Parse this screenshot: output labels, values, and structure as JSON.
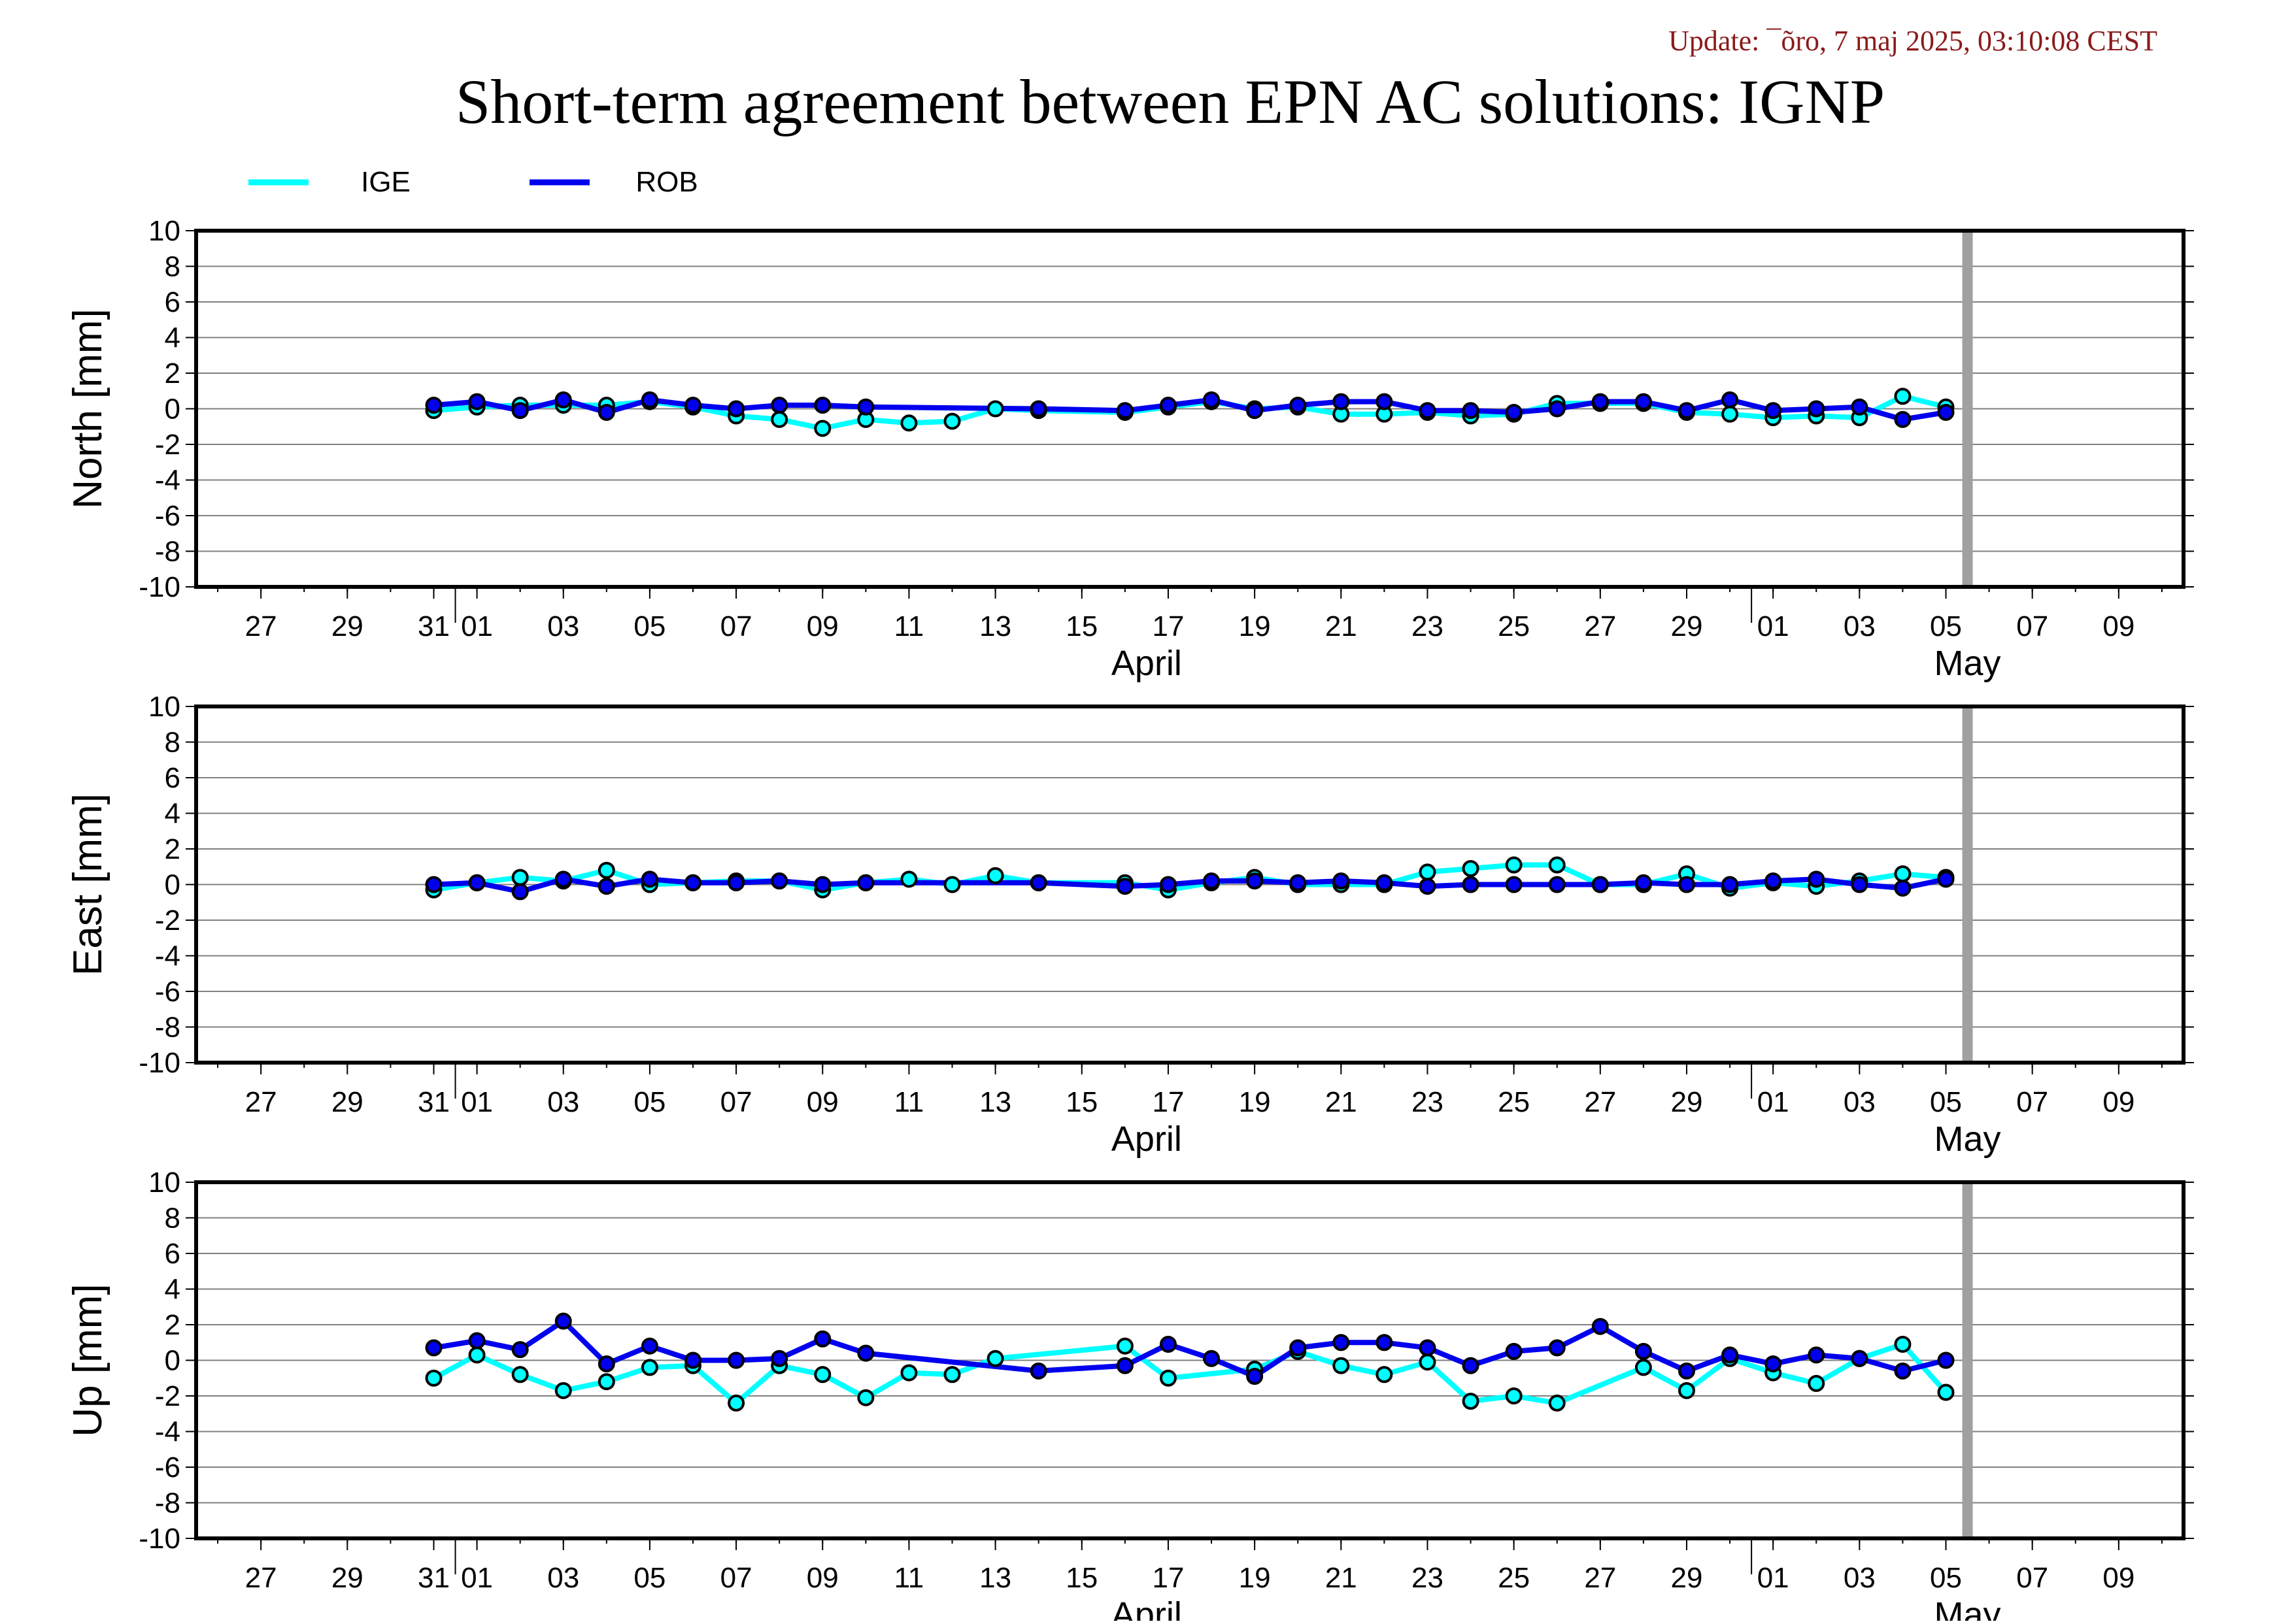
{
  "update_text": "Update: ¯õro, 7 maj 2025, 03:10:08 CEST",
  "title": "Short-term agreement between EPN AC solutions: IGNP",
  "colors": {
    "IGE": "#00ffff",
    "ROB": "#0000ee",
    "update_text": "#8b1a1a",
    "vertical_marker": "#a0a0a0",
    "grid": "#808080"
  },
  "legend": [
    {
      "name": "IGE",
      "color": "#00ffff"
    },
    {
      "name": "ROB",
      "color": "#0000ee"
    }
  ],
  "x_axis": {
    "tick_labels": [
      {
        "day": -4,
        "label": "27"
      },
      {
        "day": -2,
        "label": "29"
      },
      {
        "day": 0,
        "label": "31"
      },
      {
        "day": 1,
        "label": "01"
      },
      {
        "day": 3,
        "label": "03"
      },
      {
        "day": 5,
        "label": "05"
      },
      {
        "day": 7,
        "label": "07"
      },
      {
        "day": 9,
        "label": "09"
      },
      {
        "day": 11,
        "label": "11"
      },
      {
        "day": 13,
        "label": "13"
      },
      {
        "day": 15,
        "label": "15"
      },
      {
        "day": 17,
        "label": "17"
      },
      {
        "day": 19,
        "label": "19"
      },
      {
        "day": 21,
        "label": "21"
      },
      {
        "day": 23,
        "label": "23"
      },
      {
        "day": 25,
        "label": "25"
      },
      {
        "day": 27,
        "label": "27"
      },
      {
        "day": 29,
        "label": "29"
      },
      {
        "day": 31,
        "label": "01"
      },
      {
        "day": 33,
        "label": "03"
      },
      {
        "day": 35,
        "label": "05"
      },
      {
        "day": 37,
        "label": "07"
      },
      {
        "day": 39,
        "label": "09"
      }
    ],
    "month_labels": [
      {
        "day": 16.5,
        "label": "April"
      },
      {
        "day": 35.5,
        "label": "May"
      }
    ],
    "month_boundaries": [
      0.5,
      30.5
    ],
    "range": [
      -5.5,
      40.5
    ],
    "marker_day": 35.5
  },
  "chart_data": [
    {
      "type": "line",
      "panel": "north",
      "ylabel": "North [mm]",
      "ylim": [
        -10,
        10
      ],
      "yticks": [
        10,
        8,
        6,
        4,
        2,
        0,
        -2,
        -4,
        -6,
        -8,
        -10
      ],
      "x_days": [
        0,
        1,
        2,
        3,
        4,
        5,
        6,
        7,
        8,
        9,
        10,
        11,
        12,
        13,
        14,
        16,
        17,
        18,
        19,
        20,
        21,
        22,
        23,
        24,
        25,
        26,
        27,
        28,
        29,
        30,
        31,
        32,
        33,
        34,
        35
      ],
      "series": [
        {
          "name": "IGE",
          "values": [
            -0.1,
            0.1,
            0.2,
            0.2,
            0.2,
            0.4,
            0.1,
            -0.4,
            -0.6,
            -1.1,
            -0.6,
            -0.8,
            -0.7,
            0.0,
            -0.1,
            -0.2,
            0.1,
            0.4,
            0.0,
            0.1,
            -0.3,
            -0.3,
            -0.2,
            -0.4,
            -0.3,
            0.3,
            0.3,
            0.3,
            -0.2,
            -0.3,
            -0.5,
            -0.4,
            -0.5,
            0.7,
            0.1
          ]
        },
        {
          "name": "ROB",
          "values": [
            0.2,
            0.4,
            -0.1,
            0.5,
            -0.2,
            0.5,
            0.2,
            0.0,
            0.2,
            0.2,
            0.1,
            null,
            null,
            null,
            0.0,
            -0.1,
            0.2,
            0.5,
            -0.1,
            0.2,
            0.4,
            0.4,
            -0.1,
            -0.1,
            -0.2,
            0.0,
            0.4,
            0.4,
            -0.1,
            0.5,
            -0.1,
            0.0,
            0.1,
            -0.6,
            -0.2
          ]
        }
      ]
    },
    {
      "type": "line",
      "panel": "east",
      "ylabel": "East [mm]",
      "ylim": [
        -10,
        10
      ],
      "yticks": [
        10,
        8,
        6,
        4,
        2,
        0,
        -2,
        -4,
        -6,
        -8,
        -10
      ],
      "x_days": [
        0,
        1,
        2,
        3,
        4,
        5,
        6,
        7,
        8,
        9,
        10,
        11,
        12,
        13,
        14,
        16,
        17,
        18,
        19,
        20,
        21,
        22,
        23,
        24,
        25,
        26,
        27,
        28,
        29,
        30,
        31,
        32,
        33,
        34,
        35
      ],
      "series": [
        {
          "name": "IGE",
          "values": [
            -0.3,
            0.1,
            0.4,
            0.2,
            0.8,
            0.0,
            0.1,
            0.2,
            0.2,
            -0.3,
            0.1,
            0.3,
            0.0,
            0.5,
            0.1,
            0.1,
            -0.3,
            0.1,
            0.4,
            0.0,
            0.0,
            0.0,
            0.7,
            0.9,
            1.1,
            1.1,
            0.0,
            0.0,
            0.6,
            -0.2,
            0.1,
            -0.1,
            0.2,
            0.6,
            0.4
          ]
        },
        {
          "name": "ROB",
          "values": [
            0.0,
            0.1,
            -0.4,
            0.3,
            -0.1,
            0.3,
            0.1,
            0.1,
            0.2,
            0.0,
            0.1,
            null,
            null,
            null,
            0.1,
            -0.1,
            0.0,
            0.2,
            0.2,
            0.1,
            0.2,
            0.1,
            -0.1,
            0.0,
            0.0,
            0.0,
            0.0,
            0.1,
            0.0,
            0.0,
            0.2,
            0.3,
            0.0,
            -0.2,
            0.3
          ]
        }
      ]
    },
    {
      "type": "line",
      "panel": "up",
      "ylabel": "Up [mm]",
      "ylim": [
        -10,
        10
      ],
      "yticks": [
        10,
        8,
        6,
        4,
        2,
        0,
        -2,
        -4,
        -6,
        -8,
        -10
      ],
      "x_days": [
        0,
        1,
        2,
        3,
        4,
        5,
        6,
        7,
        8,
        9,
        10,
        11,
        12,
        13,
        14,
        16,
        17,
        18,
        19,
        20,
        21,
        22,
        23,
        24,
        25,
        26,
        27,
        28,
        29,
        30,
        31,
        32,
        33,
        34,
        35
      ],
      "series": [
        {
          "name": "IGE",
          "values": [
            -1.0,
            0.3,
            -0.8,
            -1.7,
            -1.2,
            -0.4,
            -0.3,
            -2.4,
            -0.3,
            -0.8,
            -2.1,
            -0.7,
            -0.8,
            0.1,
            null,
            0.8,
            -1.0,
            null,
            -0.5,
            0.5,
            -0.3,
            -0.8,
            -0.1,
            -2.3,
            -2.0,
            -2.4,
            null,
            -0.4,
            -1.7,
            0.1,
            -0.7,
            -1.3,
            0.1,
            0.9,
            -1.8
          ]
        },
        {
          "name": "ROB",
          "values": [
            0.7,
            1.1,
            0.6,
            2.2,
            -0.2,
            0.8,
            0.0,
            0.0,
            0.1,
            1.2,
            0.4,
            null,
            null,
            null,
            -0.6,
            -0.3,
            0.9,
            0.1,
            -0.9,
            0.7,
            1.0,
            1.0,
            0.7,
            -0.3,
            0.5,
            0.7,
            1.9,
            0.5,
            -0.6,
            0.3,
            -0.2,
            0.3,
            0.1,
            -0.6,
            0.0
          ]
        }
      ]
    }
  ]
}
